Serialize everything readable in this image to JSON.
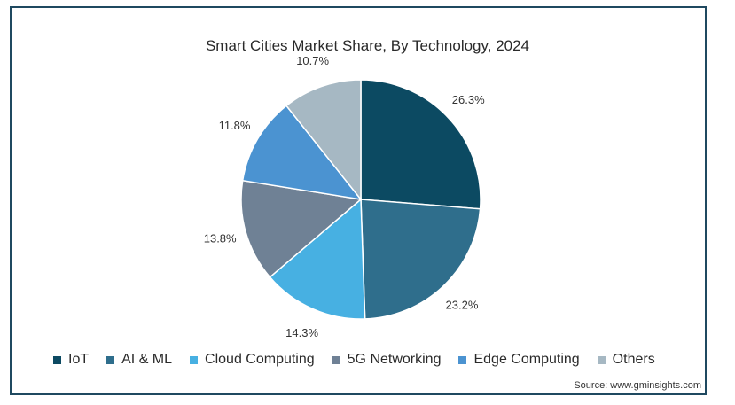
{
  "chart_data": {
    "type": "pie",
    "title": "Smart Cities Market Share, By  Technology, 2024",
    "categories": [
      "IoT",
      "AI & ML",
      "Cloud Computing",
      "5G Networking",
      "Edge Computing",
      "Others"
    ],
    "values": [
      26.3,
      23.2,
      14.3,
      13.8,
      11.8,
      10.7
    ],
    "labels": [
      "26.3%",
      "23.2%",
      "14.3%",
      "13.8%",
      "11.8%",
      "10.7%"
    ],
    "colors": [
      "#0c4a62",
      "#2f6e8c",
      "#47b0e2",
      "#6f8195",
      "#4b93d1",
      "#a6b8c3"
    ],
    "legend_position": "bottom",
    "source": "Source: www.gminsights.com"
  }
}
